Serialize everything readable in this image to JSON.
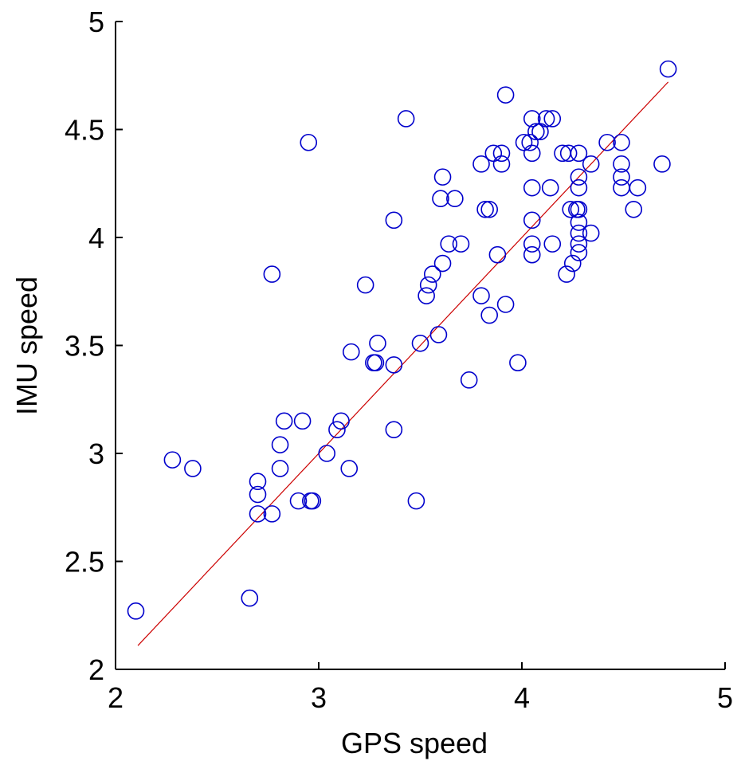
{
  "chart_data": {
    "type": "scatter",
    "title": "",
    "xlabel": "GPS speed",
    "ylabel": "IMU speed",
    "xlim": [
      2,
      5
    ],
    "ylim": [
      2,
      5
    ],
    "xticks": [
      2,
      3,
      4,
      5
    ],
    "yticks": [
      2,
      2.5,
      3,
      3.5,
      4,
      4.5,
      5
    ],
    "grid": false,
    "legend": "none",
    "series": [
      {
        "marker": "open-circle",
        "color": "#0000cc",
        "points": [
          [
            2.1,
            2.27
          ],
          [
            2.28,
            2.97
          ],
          [
            2.38,
            2.93
          ],
          [
            2.66,
            2.33
          ],
          [
            2.7,
            2.72
          ],
          [
            2.7,
            2.81
          ],
          [
            2.7,
            2.87
          ],
          [
            2.77,
            2.72
          ],
          [
            2.77,
            3.83
          ],
          [
            2.81,
            3.04
          ],
          [
            2.81,
            2.93
          ],
          [
            2.83,
            3.15
          ],
          [
            2.9,
            2.78
          ],
          [
            2.92,
            3.15
          ],
          [
            2.95,
            4.44
          ],
          [
            2.96,
            2.78
          ],
          [
            2.97,
            2.78
          ],
          [
            3.04,
            3.0
          ],
          [
            3.09,
            3.11
          ],
          [
            3.11,
            3.15
          ],
          [
            3.15,
            2.93
          ],
          [
            3.16,
            3.47
          ],
          [
            3.23,
            3.78
          ],
          [
            3.27,
            3.42
          ],
          [
            3.28,
            3.42
          ],
          [
            3.29,
            3.51
          ],
          [
            3.37,
            3.41
          ],
          [
            3.37,
            3.11
          ],
          [
            3.37,
            4.08
          ],
          [
            3.43,
            4.55
          ],
          [
            3.48,
            2.78
          ],
          [
            3.5,
            3.51
          ],
          [
            3.53,
            3.73
          ],
          [
            3.54,
            3.78
          ],
          [
            3.56,
            3.83
          ],
          [
            3.59,
            3.55
          ],
          [
            3.6,
            4.18
          ],
          [
            3.61,
            3.88
          ],
          [
            3.61,
            4.28
          ],
          [
            3.64,
            3.97
          ],
          [
            3.67,
            4.18
          ],
          [
            3.7,
            3.97
          ],
          [
            3.74,
            3.34
          ],
          [
            3.8,
            4.34
          ],
          [
            3.8,
            3.73
          ],
          [
            3.82,
            4.13
          ],
          [
            3.84,
            3.64
          ],
          [
            3.84,
            4.13
          ],
          [
            3.86,
            4.39
          ],
          [
            3.88,
            3.92
          ],
          [
            3.9,
            4.34
          ],
          [
            3.9,
            4.39
          ],
          [
            3.92,
            4.66
          ],
          [
            3.92,
            3.69
          ],
          [
            3.98,
            3.42
          ],
          [
            4.01,
            4.44
          ],
          [
            4.04,
            4.44
          ],
          [
            4.05,
            4.55
          ],
          [
            4.05,
            4.39
          ],
          [
            4.05,
            4.23
          ],
          [
            4.05,
            4.08
          ],
          [
            4.05,
            3.97
          ],
          [
            4.05,
            3.92
          ],
          [
            4.07,
            4.49
          ],
          [
            4.09,
            4.49
          ],
          [
            4.12,
            4.55
          ],
          [
            4.15,
            4.55
          ],
          [
            4.14,
            4.23
          ],
          [
            4.15,
            3.97
          ],
          [
            4.2,
            4.39
          ],
          [
            4.23,
            4.39
          ],
          [
            4.22,
            3.83
          ],
          [
            4.24,
            4.13
          ],
          [
            4.25,
            3.88
          ],
          [
            4.27,
            4.13
          ],
          [
            4.28,
            4.39
          ],
          [
            4.28,
            4.28
          ],
          [
            4.28,
            4.23
          ],
          [
            4.28,
            4.13
          ],
          [
            4.28,
            4.07
          ],
          [
            4.28,
            4.02
          ],
          [
            4.28,
            3.97
          ],
          [
            4.28,
            3.93
          ],
          [
            4.34,
            4.34
          ],
          [
            4.34,
            4.02
          ],
          [
            4.42,
            4.44
          ],
          [
            4.49,
            4.44
          ],
          [
            4.49,
            4.34
          ],
          [
            4.49,
            4.28
          ],
          [
            4.49,
            4.23
          ],
          [
            4.55,
            4.13
          ],
          [
            4.57,
            4.23
          ],
          [
            4.69,
            4.34
          ],
          [
            4.72,
            4.78
          ]
        ]
      }
    ],
    "fit_line": {
      "color": "#cc0000",
      "points": [
        [
          2.11,
          2.11
        ],
        [
          4.72,
          4.72
        ]
      ]
    }
  }
}
